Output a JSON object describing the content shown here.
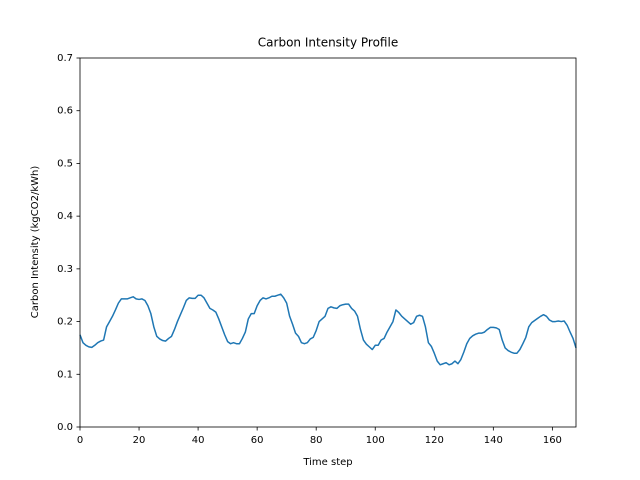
{
  "chart_data": {
    "type": "line",
    "title": "Carbon Intensity Profile",
    "x_label": "Time step",
    "y_label": "Carbon Intensity (kgCO2/kWh)",
    "x": [
      0,
      1,
      2,
      3,
      4,
      5,
      6,
      7,
      8,
      9,
      10,
      11,
      12,
      13,
      14,
      15,
      16,
      17,
      18,
      19,
      20,
      21,
      22,
      23,
      24,
      25,
      26,
      27,
      28,
      29,
      30,
      31,
      32,
      33,
      34,
      35,
      36,
      37,
      38,
      39,
      40,
      41,
      42,
      43,
      44,
      45,
      46,
      47,
      48,
      49,
      50,
      51,
      52,
      53,
      54,
      55,
      56,
      57,
      58,
      59,
      60,
      61,
      62,
      63,
      64,
      65,
      66,
      67,
      68,
      69,
      70,
      71,
      72,
      73,
      74,
      75,
      76,
      77,
      78,
      79,
      80,
      81,
      82,
      83,
      84,
      85,
      86,
      87,
      88,
      89,
      90,
      91,
      92,
      93,
      94,
      95,
      96,
      97,
      98,
      99,
      100,
      101,
      102,
      103,
      104,
      105,
      106,
      107,
      108,
      109,
      110,
      111,
      112,
      113,
      114,
      115,
      116,
      117,
      118,
      119,
      120,
      121,
      122,
      123,
      124,
      125,
      126,
      127,
      128,
      129,
      130,
      131,
      132,
      133,
      134,
      135,
      136,
      137,
      138,
      139,
      140,
      141,
      142,
      143,
      144,
      145,
      146,
      147,
      148,
      149,
      150,
      151,
      152,
      153,
      154,
      155,
      156,
      157,
      158,
      159,
      160,
      161,
      162,
      163,
      164,
      165,
      166,
      167,
      168
    ],
    "series": [
      {
        "name": "Carbon Intensity",
        "color": "#1f77b4",
        "values": [
          0.175,
          0.16,
          0.155,
          0.152,
          0.151,
          0.155,
          0.16,
          0.163,
          0.165,
          0.19,
          0.2,
          0.21,
          0.222,
          0.235,
          0.243,
          0.243,
          0.243,
          0.245,
          0.247,
          0.243,
          0.242,
          0.243,
          0.24,
          0.23,
          0.215,
          0.19,
          0.172,
          0.167,
          0.164,
          0.163,
          0.168,
          0.172,
          0.185,
          0.2,
          0.213,
          0.226,
          0.24,
          0.245,
          0.244,
          0.244,
          0.25,
          0.25,
          0.245,
          0.235,
          0.225,
          0.222,
          0.218,
          0.205,
          0.19,
          0.175,
          0.162,
          0.158,
          0.16,
          0.158,
          0.158,
          0.168,
          0.18,
          0.205,
          0.215,
          0.215,
          0.23,
          0.24,
          0.245,
          0.243,
          0.245,
          0.248,
          0.248,
          0.25,
          0.252,
          0.245,
          0.235,
          0.21,
          0.195,
          0.178,
          0.172,
          0.16,
          0.158,
          0.16,
          0.167,
          0.17,
          0.183,
          0.2,
          0.205,
          0.21,
          0.225,
          0.228,
          0.226,
          0.225,
          0.23,
          0.232,
          0.233,
          0.233,
          0.225,
          0.22,
          0.21,
          0.185,
          0.165,
          0.157,
          0.152,
          0.147,
          0.155,
          0.155,
          0.165,
          0.168,
          0.18,
          0.19,
          0.2,
          0.222,
          0.217,
          0.21,
          0.205,
          0.2,
          0.195,
          0.198,
          0.21,
          0.212,
          0.21,
          0.19,
          0.16,
          0.153,
          0.14,
          0.125,
          0.118,
          0.12,
          0.122,
          0.118,
          0.12,
          0.125,
          0.12,
          0.128,
          0.142,
          0.158,
          0.168,
          0.173,
          0.176,
          0.178,
          0.178,
          0.18,
          0.185,
          0.189,
          0.189,
          0.188,
          0.185,
          0.165,
          0.15,
          0.145,
          0.142,
          0.14,
          0.14,
          0.147,
          0.158,
          0.17,
          0.19,
          0.198,
          0.202,
          0.206,
          0.21,
          0.213,
          0.21,
          0.203,
          0.2,
          0.2,
          0.201,
          0.2,
          0.201,
          0.193,
          0.18,
          0.168,
          0.15
        ]
      }
    ],
    "xlim": [
      0,
      168
    ],
    "xticks": [
      0,
      20,
      40,
      60,
      80,
      100,
      120,
      140,
      160
    ],
    "ylim": [
      0,
      0.7
    ],
    "yticks": [
      {
        "value": 0,
        "label": "0.0"
      },
      0.1,
      0.2,
      0.3,
      0.4,
      0.5,
      0.6,
      0.7
    ],
    "grid": false
  }
}
